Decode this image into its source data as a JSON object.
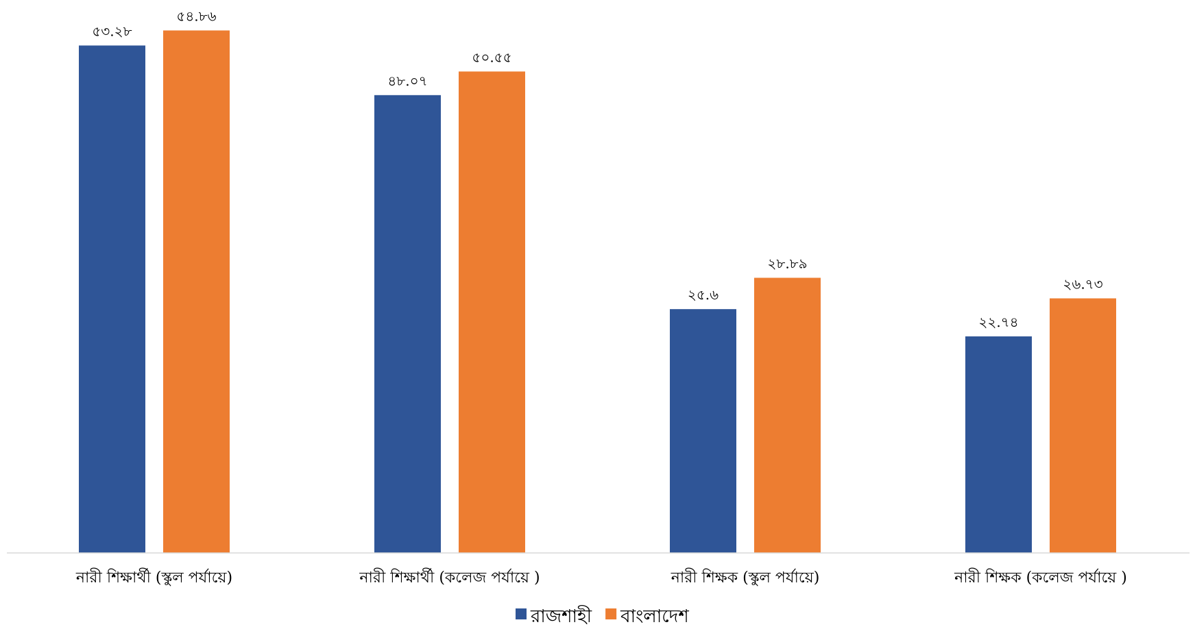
{
  "chart_data": {
    "type": "bar",
    "categories": [
      "নারী শিক্ষার্থী (স্কুল পর্যায়ে)",
      "নারী শিক্ষার্থী (কলেজ পর্যায়ে )",
      "নারী শিক্ষক (স্কুল পর্যায়ে)",
      "নারী শিক্ষক (কলেজ পর্যায়ে )"
    ],
    "series": [
      {
        "name": "রাজশাহী",
        "color": "#2F5597",
        "values": [
          53.28,
          48.07,
          25.6,
          22.74
        ],
        "labels": [
          "৫৩.২৮",
          "৪৮.০৭",
          "২৫.৬",
          "২২.৭৪"
        ]
      },
      {
        "name": "বাংলাদেশ",
        "color": "#ED7D31",
        "values": [
          54.86,
          50.55,
          28.89,
          26.73
        ],
        "labels": [
          "৫৪.৮৬",
          "৫০.৫৫",
          "২৮.৮৯",
          "২৬.৭৩"
        ]
      }
    ],
    "ylim": [
      0,
      56
    ],
    "grid": false,
    "legend": "bottom"
  }
}
